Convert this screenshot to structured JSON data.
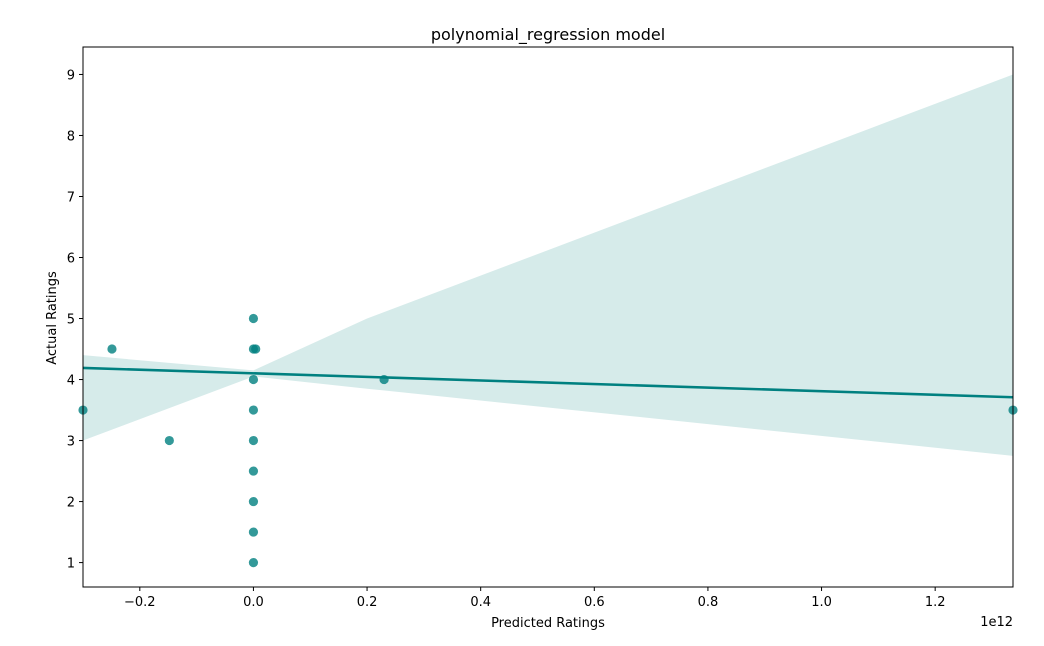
{
  "chart_data": {
    "type": "scatter",
    "title": "polynomial_regression model",
    "xlabel": "Predicted Ratings",
    "ylabel": "Actual Ratings",
    "x_offset_label": "1e12",
    "xlim": [
      -0.3,
      1.337
    ],
    "ylim": [
      0.6,
      9.45
    ],
    "x_ticks": [
      -0.2,
      0.0,
      0.2,
      0.4,
      0.6,
      0.8,
      1.0,
      1.2
    ],
    "x_tick_labels": [
      "−0.2",
      "0.0",
      "0.2",
      "0.4",
      "0.6",
      "0.8",
      "1.0",
      "1.2"
    ],
    "y_ticks": [
      1,
      2,
      3,
      4,
      5,
      6,
      7,
      8,
      9
    ],
    "y_tick_labels": [
      "1",
      "2",
      "3",
      "4",
      "5",
      "6",
      "7",
      "8",
      "9"
    ],
    "grid": false,
    "legend": "none",
    "colors": {
      "points": "#008080",
      "line": "#008080",
      "band": "#d6ebea",
      "axes": "#000000"
    },
    "points": [
      {
        "x": -0.3,
        "y": 3.5
      },
      {
        "x": -0.249,
        "y": 4.5
      },
      {
        "x": -0.148,
        "y": 3.0
      },
      {
        "x": 0.0,
        "y": 1.0
      },
      {
        "x": 0.0,
        "y": 1.5
      },
      {
        "x": 0.0,
        "y": 2.0
      },
      {
        "x": 0.0,
        "y": 2.5
      },
      {
        "x": 0.0,
        "y": 3.0
      },
      {
        "x": 0.0,
        "y": 3.5
      },
      {
        "x": 0.0,
        "y": 4.0
      },
      {
        "x": 0.0,
        "y": 4.5
      },
      {
        "x": 0.0,
        "y": 5.0
      },
      {
        "x": 0.004,
        "y": 4.5
      },
      {
        "x": 0.23,
        "y": 4.0
      },
      {
        "x": 1.337,
        "y": 3.5
      }
    ],
    "regression_line": {
      "x": [
        -0.3,
        1.337
      ],
      "y": [
        4.19,
        3.71
      ]
    },
    "confidence_band": {
      "x": [
        -0.3,
        0.0,
        0.2,
        1.337
      ],
      "upper": [
        4.4,
        4.15,
        5.0,
        9.0
      ],
      "lower": [
        3.0,
        4.05,
        3.85,
        2.75
      ]
    }
  }
}
